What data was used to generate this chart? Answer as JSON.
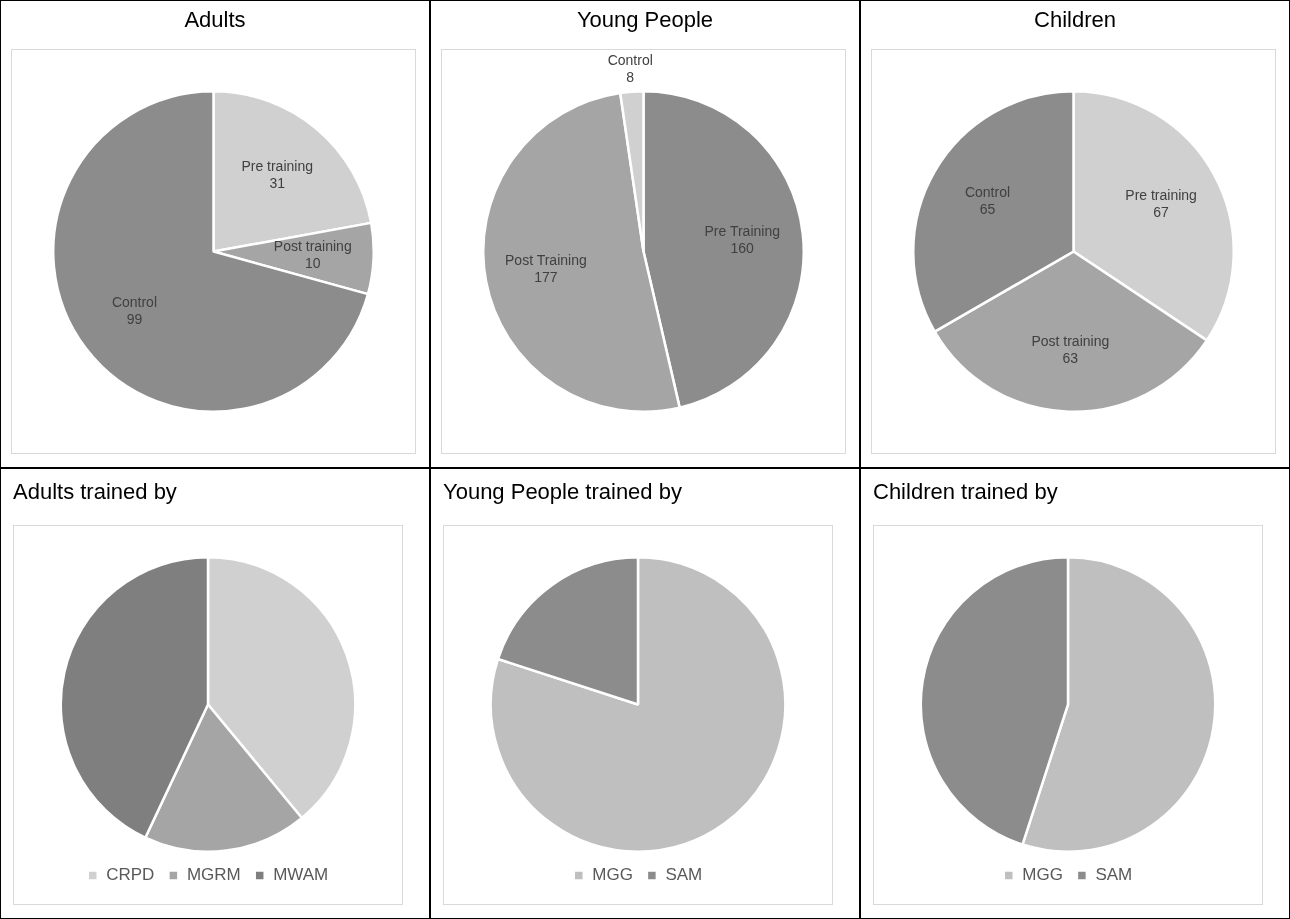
{
  "chart_data": [
    {
      "type": "pie",
      "title": "Adults",
      "categories": [
        "Pre training",
        "Post training",
        "Control"
      ],
      "values": [
        31,
        10,
        99
      ],
      "colors": [
        "#d0d0d0",
        "#a5a5a5",
        "#8c8c8c"
      ],
      "data_labels": true
    },
    {
      "type": "pie",
      "title": "Young People",
      "categories": [
        "Pre Training",
        "Post Training",
        "Control "
      ],
      "values": [
        160,
        177,
        8
      ],
      "colors": [
        "#8c8c8c",
        "#a5a5a5",
        "#d0d0d0"
      ],
      "data_labels": true
    },
    {
      "type": "pie",
      "title": "Children",
      "categories": [
        "Pre training",
        "Post training",
        "Control "
      ],
      "values": [
        67,
        63,
        65
      ],
      "colors": [
        "#d0d0d0",
        "#a5a5a5",
        "#8c8c8c"
      ],
      "data_labels": true
    },
    {
      "type": "pie",
      "title": "Adults trained by",
      "categories": [
        "CRPD",
        "MGRM",
        "MWAM"
      ],
      "values": [
        39,
        18,
        43
      ],
      "colors": [
        "#d0d0d0",
        "#a5a5a5",
        "#7f7f7f"
      ],
      "legend": "bottom"
    },
    {
      "type": "pie",
      "title": "Young People trained by",
      "categories": [
        "MGG",
        "SAM"
      ],
      "values": [
        80,
        20
      ],
      "colors": [
        "#bfbfbf",
        "#8c8c8c"
      ],
      "legend": "bottom"
    },
    {
      "type": "pie",
      "title": "Children trained by",
      "categories": [
        "MGG",
        "SAM"
      ],
      "values": [
        55,
        45
      ],
      "colors": [
        "#bfbfbf",
        "#8c8c8c"
      ],
      "legend": "bottom"
    }
  ]
}
